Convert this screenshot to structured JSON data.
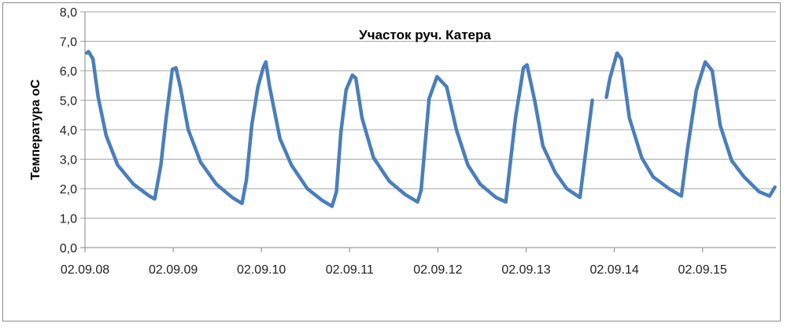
{
  "chart_data": {
    "type": "line",
    "title": "Участок руч. Катера",
    "xlabel": "",
    "ylabel": "Температура  оС",
    "x_tick_labels": [
      "02.09.08",
      "02.09.09",
      "02.09.10",
      "02.09.11",
      "02.09.12",
      "02.09.13",
      "02.09.14",
      "02.09.15"
    ],
    "y_tick_labels": [
      "0,0",
      "1,0",
      "2,0",
      "3,0",
      "4,0",
      "5,0",
      "6,0",
      "7,0",
      "8,0"
    ],
    "ylim": [
      0,
      8
    ],
    "xlim": [
      8,
      15.83
    ],
    "x_units_note": "x values are positions along the date axis expressed by the last label component (8 = 02.09.08, 15 = 02.09.15)",
    "grid": {
      "horizontal": true,
      "vertical": false
    },
    "legend": "none",
    "series": [
      {
        "color": "#4a7ebb",
        "points": [
          [
            8.02,
            6.6
          ],
          [
            8.04,
            6.65
          ],
          [
            8.09,
            6.4
          ],
          [
            8.15,
            5.1
          ],
          [
            8.24,
            3.8
          ],
          [
            8.37,
            2.8
          ],
          [
            8.55,
            2.15
          ],
          [
            8.73,
            1.75
          ],
          [
            8.79,
            1.65
          ],
          [
            8.86,
            2.8
          ],
          [
            8.92,
            4.4
          ],
          [
            8.99,
            6.05
          ],
          [
            9.03,
            6.1
          ],
          [
            9.08,
            5.45
          ],
          [
            9.17,
            4.0
          ],
          [
            9.31,
            2.9
          ],
          [
            9.49,
            2.15
          ],
          [
            9.67,
            1.7
          ],
          [
            9.78,
            1.5
          ],
          [
            9.83,
            2.3
          ],
          [
            9.89,
            4.15
          ],
          [
            9.96,
            5.45
          ],
          [
            10.02,
            6.1
          ],
          [
            10.05,
            6.3
          ],
          [
            10.09,
            5.5
          ],
          [
            10.21,
            3.7
          ],
          [
            10.34,
            2.8
          ],
          [
            10.52,
            2.0
          ],
          [
            10.69,
            1.6
          ],
          [
            10.8,
            1.4
          ],
          [
            10.85,
            1.9
          ],
          [
            10.9,
            3.9
          ],
          [
            10.96,
            5.35
          ],
          [
            11.03,
            5.85
          ],
          [
            11.07,
            5.75
          ],
          [
            11.14,
            4.4
          ],
          [
            11.27,
            3.05
          ],
          [
            11.45,
            2.25
          ],
          [
            11.63,
            1.8
          ],
          [
            11.77,
            1.55
          ],
          [
            11.81,
            1.95
          ],
          [
            11.9,
            5.05
          ],
          [
            11.99,
            5.8
          ],
          [
            12.1,
            5.45
          ],
          [
            12.21,
            4.0
          ],
          [
            12.34,
            2.8
          ],
          [
            12.48,
            2.15
          ],
          [
            12.66,
            1.7
          ],
          [
            12.77,
            1.55
          ],
          [
            12.88,
            4.4
          ],
          [
            12.97,
            6.1
          ],
          [
            13.01,
            6.2
          ],
          [
            13.1,
            4.95
          ],
          [
            13.19,
            3.45
          ],
          [
            13.33,
            2.55
          ],
          [
            13.46,
            2.0
          ],
          [
            13.61,
            1.7
          ],
          [
            13.68,
            3.35
          ],
          [
            13.75,
            5.0
          ],
          null,
          [
            13.91,
            5.1
          ],
          [
            13.95,
            5.75
          ],
          [
            14.03,
            6.6
          ],
          [
            14.08,
            6.4
          ],
          [
            14.17,
            4.4
          ],
          [
            14.31,
            3.05
          ],
          [
            14.44,
            2.4
          ],
          [
            14.62,
            2.0
          ],
          [
            14.76,
            1.75
          ],
          [
            14.83,
            3.35
          ],
          [
            14.93,
            5.35
          ],
          [
            15.03,
            6.3
          ],
          [
            15.11,
            6.0
          ],
          [
            15.2,
            4.15
          ],
          [
            15.33,
            2.95
          ],
          [
            15.47,
            2.4
          ],
          [
            15.64,
            1.9
          ],
          [
            15.76,
            1.75
          ],
          [
            15.82,
            2.05
          ]
        ]
      }
    ]
  }
}
